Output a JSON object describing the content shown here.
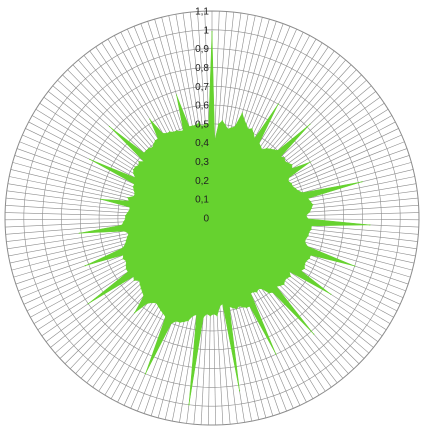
{
  "chart_data": {
    "type": "radar",
    "title": "",
    "series": [
      {
        "values": [
          0.99,
          0.41,
          0.5,
          0.52,
          0.5,
          0.48,
          0.49,
          0.5,
          0.58,
          0.55,
          0.53,
          0.51,
          0.52,
          0.5,
          0.48,
          0.7,
          0.47,
          0.46,
          0.45,
          0.47,
          0.48,
          0.49,
          0.5,
          0.72,
          0.49,
          0.5,
          0.49,
          0.5,
          0.51,
          0.5,
          0.6,
          0.46,
          0.45,
          0.46,
          0.46,
          0.47,
          0.48,
          0.5,
          0.82,
          0.52,
          0.53,
          0.54,
          0.53,
          0.52,
          0.5,
          0.51,
          0.84,
          0.53,
          0.53,
          0.52,
          0.52,
          0.51,
          0.51,
          0.53,
          0.8,
          0.56,
          0.56,
          0.55,
          0.55,
          0.56,
          0.55,
          0.75,
          0.5,
          0.52,
          0.51,
          0.51,
          0.52,
          0.51,
          0.5,
          0.82,
          0.51,
          0.5,
          0.46,
          0.45,
          0.46,
          0.45,
          0.45,
          0.8,
          0.51,
          0.51,
          0.5,
          0.49,
          0.5,
          0.49,
          0.48,
          0.93,
          0.46,
          0.47,
          0.52,
          0.51,
          0.52,
          0.51,
          0.53,
          1.0,
          0.52,
          0.53,
          0.56,
          0.57,
          0.58,
          0.58,
          0.6,
          0.9,
          0.58,
          0.57,
          0.56,
          0.55,
          0.54,
          0.55,
          0.57,
          0.65,
          0.55,
          0.54,
          0.53,
          0.52,
          0.51,
          0.53,
          0.52,
          0.8,
          0.53,
          0.53,
          0.52,
          0.51,
          0.52,
          0.51,
          0.72,
          0.5,
          0.48,
          0.47,
          0.46,
          0.45,
          0.47,
          0.71,
          0.48,
          0.47,
          0.46,
          0.46,
          0.45,
          0.44,
          0.44,
          0.6,
          0.45,
          0.46,
          0.43,
          0.43,
          0.44,
          0.45,
          0.45,
          0.72,
          0.46,
          0.48,
          0.49,
          0.49,
          0.48,
          0.49,
          0.47,
          0.73,
          0.5,
          0.5,
          0.5,
          0.49,
          0.5,
          0.51,
          0.51,
          0.62,
          0.52,
          0.51,
          0.51,
          0.5,
          0.5,
          0.49,
          0.49,
          0.68,
          0.5,
          0.5,
          0.5,
          0.51,
          0.49,
          0.5,
          0.5
        ]
      }
    ],
    "axis": {
      "min": 0,
      "max": 1.1,
      "step": 0.1,
      "tick_labels": [
        "0",
        "0,1",
        "0,2",
        "0,3",
        "0,4",
        "0,5",
        "0,6",
        "0,7",
        "0,8",
        "0,9",
        "1",
        "1,1"
      ]
    },
    "grid": true,
    "legend": "none",
    "colors": {
      "fill": "#66d22f",
      "grid": "#8c8c8c"
    }
  }
}
